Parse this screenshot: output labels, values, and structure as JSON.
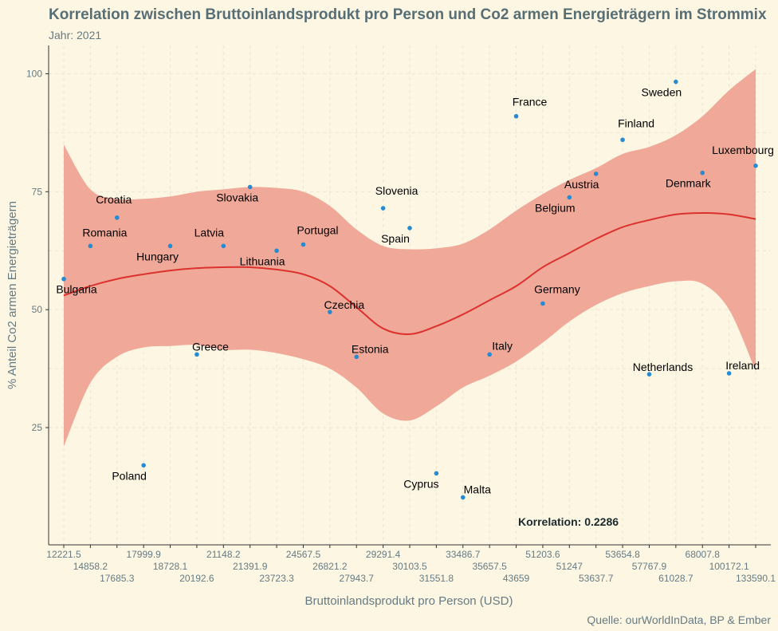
{
  "chart_data": {
    "type": "scatter",
    "title": "Korrelation zwischen Bruttoinlandsprodukt pro Person und Co2 armen Energieträgern im Strommix",
    "subtitle": "Jahr: 2021",
    "xlabel": "Bruttoinlandsprodukt pro Person (USD)",
    "ylabel": "% Anteil Co2 armen Energieträgern",
    "caption": "Quelle: ourWorldInData, BP & Ember",
    "annotation": "Korrelation:  0.2286",
    "x_scale": "categorical (ordered by GDP per capita)",
    "x_tick_labels": [
      "12221.5",
      "14858.2",
      "17685.3",
      "17999.9",
      "18728.1",
      "20192.6",
      "21148.2",
      "21391.9",
      "23723.3",
      "24567.5",
      "26821.2",
      "27943.7",
      "29291.4",
      "30103.5",
      "31551.8",
      "33486.7",
      "35657.5",
      "43659",
      "51203.6",
      "51247",
      "53637.7",
      "53654.8",
      "57767.9",
      "61028.7",
      "68007.8",
      "100172.1",
      "133590.1"
    ],
    "y_ticks": [
      25,
      50,
      75,
      100
    ],
    "ylim": [
      3,
      106
    ],
    "grid": true,
    "colors": {
      "background": "#fdf6e3",
      "point": "#268bd2",
      "trend_line": "#dc322f",
      "confidence_band": "#f0a898"
    },
    "points": [
      {
        "country": "Bulgaria",
        "x": "12221.5",
        "y": 56.5
      },
      {
        "country": "Romania",
        "x": "14858.2",
        "y": 63.5
      },
      {
        "country": "Croatia",
        "x": "17685.3",
        "y": 69.5
      },
      {
        "country": "Poland",
        "x": "17999.9",
        "y": 17.0
      },
      {
        "country": "Hungary",
        "x": "18728.1",
        "y": 63.5
      },
      {
        "country": "Greece",
        "x": "20192.6",
        "y": 40.5
      },
      {
        "country": "Latvia",
        "x": "21148.2",
        "y": 63.5
      },
      {
        "country": "Slovakia",
        "x": "21391.9",
        "y": 76.0
      },
      {
        "country": "Lithuania",
        "x": "23723.3",
        "y": 62.5
      },
      {
        "country": "Portugal",
        "x": "24567.5",
        "y": 63.8
      },
      {
        "country": "Czechia",
        "x": "26821.2",
        "y": 49.5
      },
      {
        "country": "Estonia",
        "x": "27943.7",
        "y": 40.0
      },
      {
        "country": "Slovenia",
        "x": "29291.4",
        "y": 71.5
      },
      {
        "country": "Spain",
        "x": "30103.5",
        "y": 67.3
      },
      {
        "country": "Cyprus",
        "x": "31551.8",
        "y": 15.3
      },
      {
        "country": "Malta",
        "x": "33486.7",
        "y": 10.2
      },
      {
        "country": "Italy",
        "x": "35657.5",
        "y": 40.5
      },
      {
        "country": "France",
        "x": "43659",
        "y": 91.0
      },
      {
        "country": "Germany",
        "x": "51203.6",
        "y": 51.3
      },
      {
        "country": "Belgium",
        "x": "51247",
        "y": 73.8
      },
      {
        "country": "Austria",
        "x": "53637.7",
        "y": 78.8
      },
      {
        "country": "Finland",
        "x": "53654.8",
        "y": 86.0
      },
      {
        "country": "Netherlands",
        "x": "57767.9",
        "y": 36.3
      },
      {
        "country": "Sweden",
        "x": "61028.7",
        "y": 98.3
      },
      {
        "country": "Denmark",
        "x": "68007.8",
        "y": 79.0
      },
      {
        "country": "Ireland",
        "x": "100172.1",
        "y": 36.5
      },
      {
        "country": "Luxembourg",
        "x": "133590.1",
        "y": 80.5
      }
    ],
    "trend": {
      "method": "loess",
      "x": [
        "12221.5",
        "14858.2",
        "17685.3",
        "17999.9",
        "18728.1",
        "20192.6",
        "21148.2",
        "21391.9",
        "23723.3",
        "24567.5",
        "26821.2",
        "27943.7",
        "29291.4",
        "30103.5",
        "31551.8",
        "33486.7",
        "35657.5",
        "43659",
        "51203.6",
        "51247",
        "53637.7",
        "53654.8",
        "57767.9",
        "61028.7",
        "68007.8",
        "100172.1",
        "133590.1"
      ],
      "fit": [
        53.0,
        55.0,
        56.5,
        57.5,
        58.3,
        58.8,
        59.0,
        59.0,
        58.5,
        57.5,
        55.0,
        50.5,
        46.0,
        44.8,
        46.5,
        49.0,
        52.0,
        55.0,
        59.0,
        62.0,
        65.0,
        67.5,
        69.0,
        70.2,
        70.5,
        70.2,
        69.2
      ],
      "upper": [
        85.0,
        75.5,
        73.5,
        73.5,
        74.0,
        75.0,
        75.5,
        76.0,
        75.8,
        75.0,
        72.0,
        67.0,
        63.5,
        62.8,
        63.0,
        64.0,
        67.0,
        71.0,
        74.5,
        77.5,
        80.0,
        83.0,
        84.5,
        87.0,
        91.0,
        96.5,
        101.0
      ],
      "lower": [
        21.0,
        34.5,
        40.0,
        42.0,
        42.3,
        42.5,
        41.5,
        41.5,
        40.8,
        39.5,
        37.5,
        33.5,
        28.0,
        26.5,
        29.5,
        33.5,
        36.0,
        39.0,
        43.0,
        47.5,
        51.0,
        53.5,
        55.0,
        56.0,
        55.5,
        50.0,
        37.0
      ]
    }
  }
}
